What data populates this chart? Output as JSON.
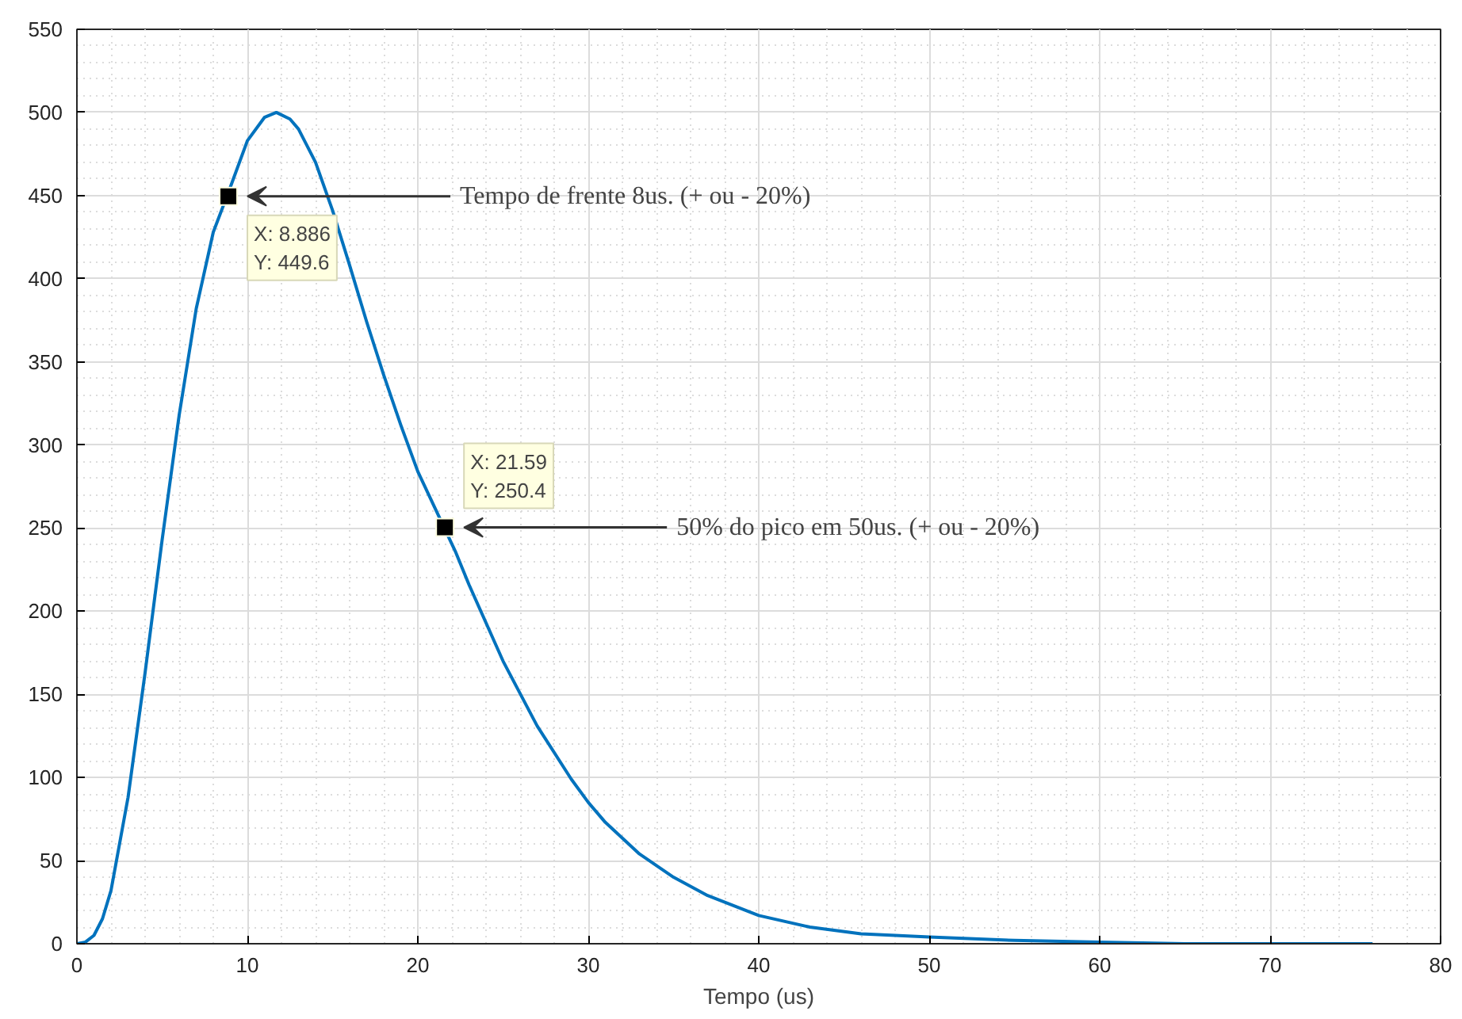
{
  "chart_data": {
    "type": "line",
    "xlabel": "Tempo (us)",
    "xlim": [
      0,
      80
    ],
    "ylim": [
      0,
      550
    ],
    "xticks": [
      0,
      10,
      20,
      30,
      40,
      50,
      60,
      70,
      80
    ],
    "yticks": [
      0,
      50,
      100,
      150,
      200,
      250,
      300,
      350,
      400,
      450,
      500,
      550
    ],
    "grid": true,
    "series": [
      {
        "color": "#0072bd",
        "marker": "none",
        "x": [
          0,
          0.5,
          1,
          1.5,
          2,
          3,
          4,
          5,
          6,
          7,
          8,
          9,
          10,
          11,
          11.7,
          12.5,
          13,
          14,
          15,
          16,
          17,
          18,
          19,
          20,
          22.2,
          23,
          25,
          27,
          29,
          30,
          31,
          33,
          35,
          37,
          40,
          43,
          46,
          50,
          55,
          60,
          65,
          70,
          76
        ],
        "values": [
          0,
          1,
          5,
          15,
          32,
          88,
          163,
          243,
          318,
          382,
          428,
          455,
          483,
          497,
          500,
          496,
          490,
          470,
          441,
          408,
          374,
          342,
          312,
          284,
          236,
          216,
          170,
          131,
          99,
          85,
          73,
          54,
          40,
          29,
          17,
          10,
          6,
          4,
          2,
          1,
          0,
          0,
          0
        ]
      },
      {
        "type": "scatter",
        "color": "#000000",
        "marker": "square",
        "x": [
          8.886,
          21.59
        ],
        "values": [
          449.6,
          250.4
        ],
        "value_labels": [
          "X: 8.886\nY: 449.6",
          "X: 21.59\nY: 250.4"
        ]
      }
    ],
    "annotations": [
      "Tempo de frente 8us. (+ ou - 20%)",
      "50% do pico em 50us. (+ ou - 20%)"
    ]
  }
}
